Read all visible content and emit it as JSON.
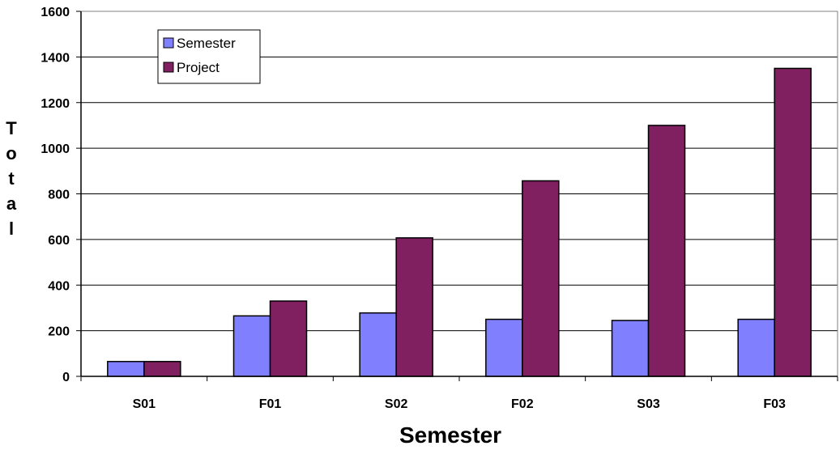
{
  "chart_data": {
    "type": "bar",
    "title": "",
    "xlabel": "Semester",
    "ylabel": "Total",
    "categories": [
      "S01",
      "F01",
      "S02",
      "F02",
      "S03",
      "F03"
    ],
    "series": [
      {
        "name": "Semester",
        "values": [
          65,
          265,
          278,
          250,
          245,
          250
        ],
        "color": "#8080ff"
      },
      {
        "name": "Project",
        "values": [
          65,
          330,
          607,
          857,
          1100,
          1350
        ],
        "color": "#802060"
      }
    ],
    "ylim": [
      0,
      1600
    ],
    "yticks": [
      "0",
      "200",
      "400",
      "600",
      "800",
      "1000",
      "1200",
      "1400",
      "1600"
    ],
    "grid": true,
    "legend_position": "top-left"
  }
}
